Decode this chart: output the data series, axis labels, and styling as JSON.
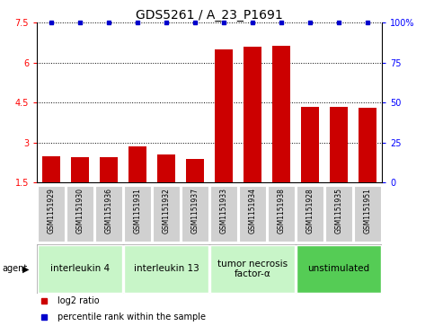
{
  "title": "GDS5261 / A_23_P1691",
  "samples": [
    "GSM1151929",
    "GSM1151930",
    "GSM1151936",
    "GSM1151931",
    "GSM1151932",
    "GSM1151937",
    "GSM1151933",
    "GSM1151934",
    "GSM1151938",
    "GSM1151928",
    "GSM1151935",
    "GSM1151951"
  ],
  "log2_ratio": [
    2.5,
    2.45,
    2.47,
    2.85,
    2.55,
    2.38,
    6.5,
    6.6,
    6.65,
    4.35,
    4.35,
    4.3
  ],
  "ylim_left": [
    1.5,
    7.5
  ],
  "ylim_right": [
    0,
    100
  ],
  "yticks_left": [
    1.5,
    3.0,
    4.5,
    6.0,
    7.5
  ],
  "yticks_right": [
    0,
    25,
    50,
    75,
    100
  ],
  "ytick_labels_left": [
    "1.5",
    "3",
    "4.5",
    "6",
    "7.5"
  ],
  "ytick_labels_right": [
    "0",
    "25",
    "50",
    "75",
    "100%"
  ],
  "agent_groups": [
    {
      "label": "interleukin 4",
      "indices": [
        0,
        1,
        2
      ],
      "color": "#c8f5c8"
    },
    {
      "label": "interleukin 13",
      "indices": [
        3,
        4,
        5
      ],
      "color": "#c8f5c8"
    },
    {
      "label": "tumor necrosis\nfactor-α",
      "indices": [
        6,
        7,
        8
      ],
      "color": "#c8f5c8"
    },
    {
      "label": "unstimulated",
      "indices": [
        9,
        10,
        11
      ],
      "color": "#55cc55"
    }
  ],
  "bar_color": "#cc0000",
  "percentile_color": "#0000cc",
  "sample_box_color": "#d0d0d0",
  "title_fontsize": 10,
  "tick_fontsize": 7,
  "sample_fontsize": 5.5,
  "agent_fontsize": 7.5,
  "legend_fontsize": 7
}
